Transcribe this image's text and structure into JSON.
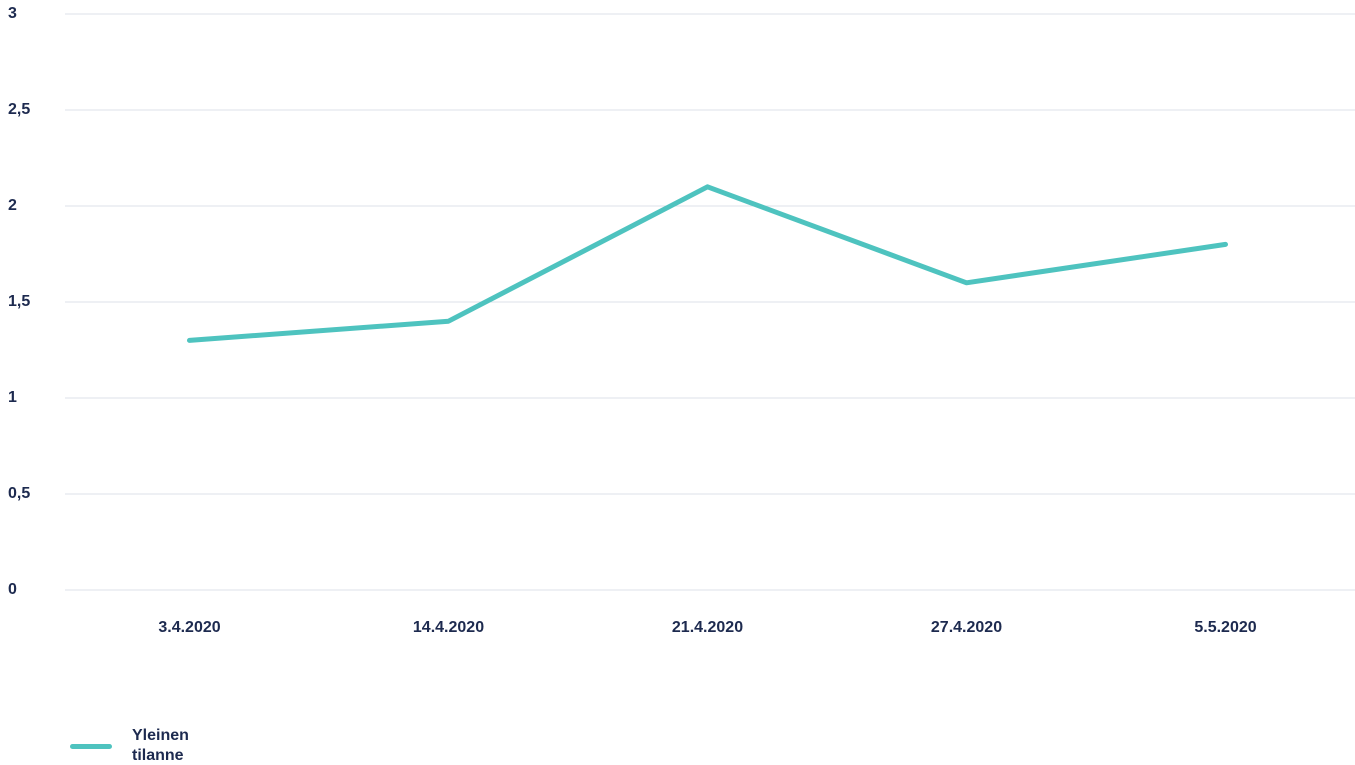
{
  "chart_data": {
    "type": "line",
    "categories": [
      "3.4.2020",
      "14.4.2020",
      "21.4.2020",
      "27.4.2020",
      "5.5.2020"
    ],
    "series": [
      {
        "name": "Yleinen tilanne",
        "color": "#4ec3bf",
        "values": [
          1.3,
          1.4,
          2.1,
          1.6,
          1.8
        ]
      }
    ],
    "ylim": [
      0,
      3
    ],
    "yticks": [
      0,
      {
        "value": 0.5,
        "label": "0,5"
      },
      1,
      {
        "value": 1.5,
        "label": "1,5"
      },
      2,
      {
        "value": 2.5,
        "label": "2,5"
      },
      3
    ],
    "grid": true,
    "legend": "bottom-left"
  }
}
